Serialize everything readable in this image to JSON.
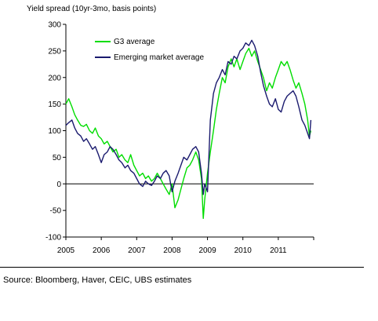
{
  "chart_data": {
    "type": "line",
    "title": "Yield spread (10yr-3mo, basis points)",
    "ylim": [
      -100,
      300
    ],
    "yticks": [
      -100,
      -50,
      0,
      50,
      100,
      150,
      200,
      250,
      300
    ],
    "xlim": [
      2005,
      2012
    ],
    "xticks": [
      "2005",
      "2006",
      "2007",
      "2008",
      "2009",
      "2010",
      "2011"
    ],
    "legend": "top-left inside",
    "grid": false,
    "series": [
      {
        "name": "G3 average",
        "color": "#00dd00",
        "points": [
          [
            2005.0,
            150
          ],
          [
            2005.08,
            160
          ],
          [
            2005.17,
            145
          ],
          [
            2005.25,
            130
          ],
          [
            2005.33,
            120
          ],
          [
            2005.42,
            110
          ],
          [
            2005.5,
            108
          ],
          [
            2005.58,
            112
          ],
          [
            2005.67,
            100
          ],
          [
            2005.75,
            95
          ],
          [
            2005.83,
            105
          ],
          [
            2005.92,
            90
          ],
          [
            2006.0,
            85
          ],
          [
            2006.08,
            75
          ],
          [
            2006.17,
            80
          ],
          [
            2006.25,
            70
          ],
          [
            2006.33,
            60
          ],
          [
            2006.42,
            65
          ],
          [
            2006.5,
            50
          ],
          [
            2006.58,
            55
          ],
          [
            2006.67,
            45
          ],
          [
            2006.75,
            40
          ],
          [
            2006.83,
            55
          ],
          [
            2006.92,
            35
          ],
          [
            2007.0,
            25
          ],
          [
            2007.08,
            15
          ],
          [
            2007.17,
            20
          ],
          [
            2007.25,
            10
          ],
          [
            2007.33,
            15
          ],
          [
            2007.42,
            5
          ],
          [
            2007.5,
            10
          ],
          [
            2007.58,
            20
          ],
          [
            2007.67,
            10
          ],
          [
            2007.75,
            0
          ],
          [
            2007.83,
            -10
          ],
          [
            2007.92,
            -20
          ],
          [
            2008.0,
            0
          ],
          [
            2008.08,
            -45
          ],
          [
            2008.17,
            -30
          ],
          [
            2008.25,
            -10
          ],
          [
            2008.33,
            10
          ],
          [
            2008.42,
            30
          ],
          [
            2008.5,
            35
          ],
          [
            2008.58,
            45
          ],
          [
            2008.67,
            60
          ],
          [
            2008.75,
            45
          ],
          [
            2008.83,
            10
          ],
          [
            2008.88,
            -65
          ],
          [
            2008.92,
            -30
          ],
          [
            2009.0,
            20
          ],
          [
            2009.08,
            60
          ],
          [
            2009.17,
            100
          ],
          [
            2009.25,
            140
          ],
          [
            2009.33,
            170
          ],
          [
            2009.42,
            200
          ],
          [
            2009.5,
            190
          ],
          [
            2009.58,
            220
          ],
          [
            2009.67,
            235
          ],
          [
            2009.75,
            220
          ],
          [
            2009.83,
            235
          ],
          [
            2009.92,
            215
          ],
          [
            2010.0,
            230
          ],
          [
            2010.08,
            245
          ],
          [
            2010.17,
            255
          ],
          [
            2010.25,
            240
          ],
          [
            2010.33,
            250
          ],
          [
            2010.42,
            230
          ],
          [
            2010.5,
            215
          ],
          [
            2010.58,
            200
          ],
          [
            2010.67,
            175
          ],
          [
            2010.75,
            190
          ],
          [
            2010.83,
            180
          ],
          [
            2010.92,
            200
          ],
          [
            2011.0,
            215
          ],
          [
            2011.08,
            230
          ],
          [
            2011.17,
            222
          ],
          [
            2011.25,
            230
          ],
          [
            2011.33,
            215
          ],
          [
            2011.42,
            195
          ],
          [
            2011.5,
            180
          ],
          [
            2011.58,
            190
          ],
          [
            2011.67,
            170
          ],
          [
            2011.75,
            150
          ],
          [
            2011.83,
            120
          ],
          [
            2011.88,
            90
          ],
          [
            2011.92,
            100
          ]
        ]
      },
      {
        "name": "Emerging market average",
        "color": "#1a1a6e",
        "points": [
          [
            2005.0,
            110
          ],
          [
            2005.08,
            115
          ],
          [
            2005.17,
            120
          ],
          [
            2005.25,
            105
          ],
          [
            2005.33,
            95
          ],
          [
            2005.42,
            90
          ],
          [
            2005.5,
            80
          ],
          [
            2005.58,
            85
          ],
          [
            2005.67,
            75
          ],
          [
            2005.75,
            65
          ],
          [
            2005.83,
            70
          ],
          [
            2005.92,
            55
          ],
          [
            2006.0,
            40
          ],
          [
            2006.08,
            55
          ],
          [
            2006.17,
            60
          ],
          [
            2006.25,
            70
          ],
          [
            2006.33,
            65
          ],
          [
            2006.42,
            55
          ],
          [
            2006.5,
            45
          ],
          [
            2006.58,
            40
          ],
          [
            2006.67,
            30
          ],
          [
            2006.75,
            35
          ],
          [
            2006.83,
            25
          ],
          [
            2006.92,
            20
          ],
          [
            2007.0,
            10
          ],
          [
            2007.08,
            0
          ],
          [
            2007.17,
            -5
          ],
          [
            2007.25,
            5
          ],
          [
            2007.33,
            0
          ],
          [
            2007.42,
            -3
          ],
          [
            2007.5,
            5
          ],
          [
            2007.58,
            15
          ],
          [
            2007.67,
            10
          ],
          [
            2007.75,
            20
          ],
          [
            2007.83,
            25
          ],
          [
            2007.92,
            15
          ],
          [
            2008.0,
            -15
          ],
          [
            2008.08,
            5
          ],
          [
            2008.17,
            20
          ],
          [
            2008.25,
            35
          ],
          [
            2008.33,
            50
          ],
          [
            2008.42,
            45
          ],
          [
            2008.5,
            55
          ],
          [
            2008.58,
            65
          ],
          [
            2008.67,
            70
          ],
          [
            2008.75,
            60
          ],
          [
            2008.83,
            20
          ],
          [
            2008.88,
            -20
          ],
          [
            2008.92,
            0
          ],
          [
            2009.0,
            -15
          ],
          [
            2009.08,
            120
          ],
          [
            2009.17,
            170
          ],
          [
            2009.25,
            190
          ],
          [
            2009.33,
            200
          ],
          [
            2009.42,
            215
          ],
          [
            2009.5,
            205
          ],
          [
            2009.58,
            230
          ],
          [
            2009.67,
            225
          ],
          [
            2009.75,
            240
          ],
          [
            2009.83,
            235
          ],
          [
            2009.92,
            250
          ],
          [
            2010.0,
            255
          ],
          [
            2010.08,
            265
          ],
          [
            2010.17,
            260
          ],
          [
            2010.25,
            270
          ],
          [
            2010.33,
            260
          ],
          [
            2010.42,
            240
          ],
          [
            2010.5,
            210
          ],
          [
            2010.58,
            185
          ],
          [
            2010.67,
            165
          ],
          [
            2010.75,
            150
          ],
          [
            2010.83,
            145
          ],
          [
            2010.92,
            160
          ],
          [
            2011.0,
            140
          ],
          [
            2011.08,
            135
          ],
          [
            2011.17,
            155
          ],
          [
            2011.25,
            165
          ],
          [
            2011.33,
            170
          ],
          [
            2011.42,
            175
          ],
          [
            2011.5,
            165
          ],
          [
            2011.58,
            145
          ],
          [
            2011.67,
            120
          ],
          [
            2011.75,
            110
          ],
          [
            2011.83,
            95
          ],
          [
            2011.88,
            85
          ],
          [
            2011.92,
            120
          ]
        ]
      }
    ]
  },
  "footer": {
    "source": "Source: Bloomberg, Haver, CEIC, UBS estimates"
  }
}
